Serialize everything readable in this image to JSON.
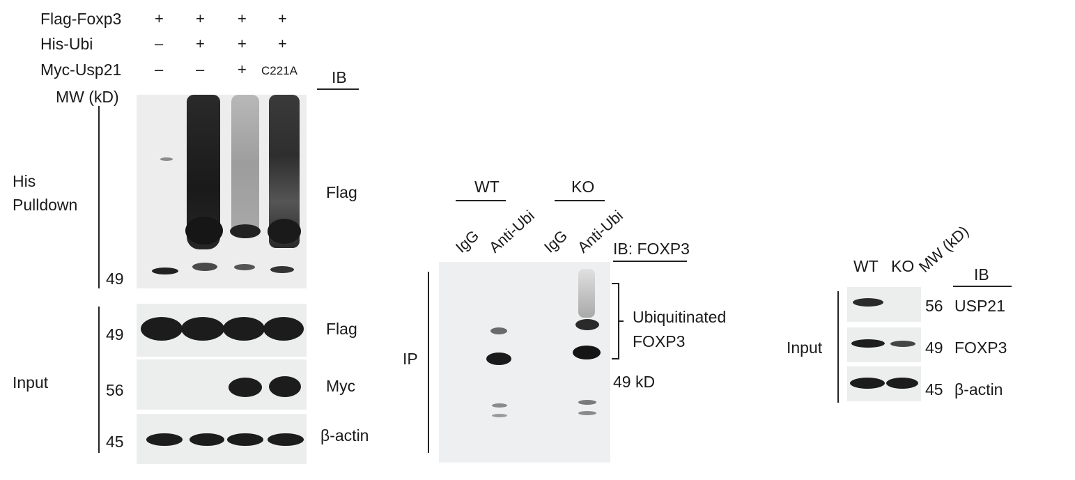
{
  "panel_a": {
    "rows": [
      {
        "label": "Flag-Foxp3",
        "cells": [
          "+",
          "+",
          "+",
          "+"
        ]
      },
      {
        "label": "His-Ubi",
        "cells": [
          "–",
          "+",
          "+",
          "+"
        ]
      },
      {
        "label": "Myc-Usp21",
        "cells": [
          "–",
          "–",
          "+",
          "C221A"
        ]
      }
    ],
    "ib_header": "IB",
    "mw_label": "MW (kD)",
    "his_pulldown_label": "His\nPulldown",
    "his_pulldown_line1": "His",
    "his_pulldown_line2": "Pulldown",
    "input_label": "Input",
    "mw_markers": [
      "49",
      "49",
      "56",
      "45"
    ],
    "ib_labels": [
      "Flag",
      "Flag",
      "Myc",
      "β-actin"
    ]
  },
  "panel_b": {
    "groups": [
      "WT",
      "KO"
    ],
    "lanes": [
      "IgG",
      "Anti-Ubi",
      "IgG",
      "Anti-Ubi"
    ],
    "ib_header": "IB: FOXP3",
    "ip_label": "IP",
    "bracket_label_line1": "Ubiquitinated",
    "bracket_label_line2": "FOXP3",
    "mw_marker": "49 kD"
  },
  "panel_c": {
    "lanes": [
      "WT",
      "KO"
    ],
    "mw_header": "MW (kD)",
    "ib_header": "IB",
    "input_label": "Input",
    "mw_markers": [
      "56",
      "49",
      "45"
    ],
    "ib_labels": [
      "USP21",
      "FOXP3",
      "β-actin"
    ]
  }
}
